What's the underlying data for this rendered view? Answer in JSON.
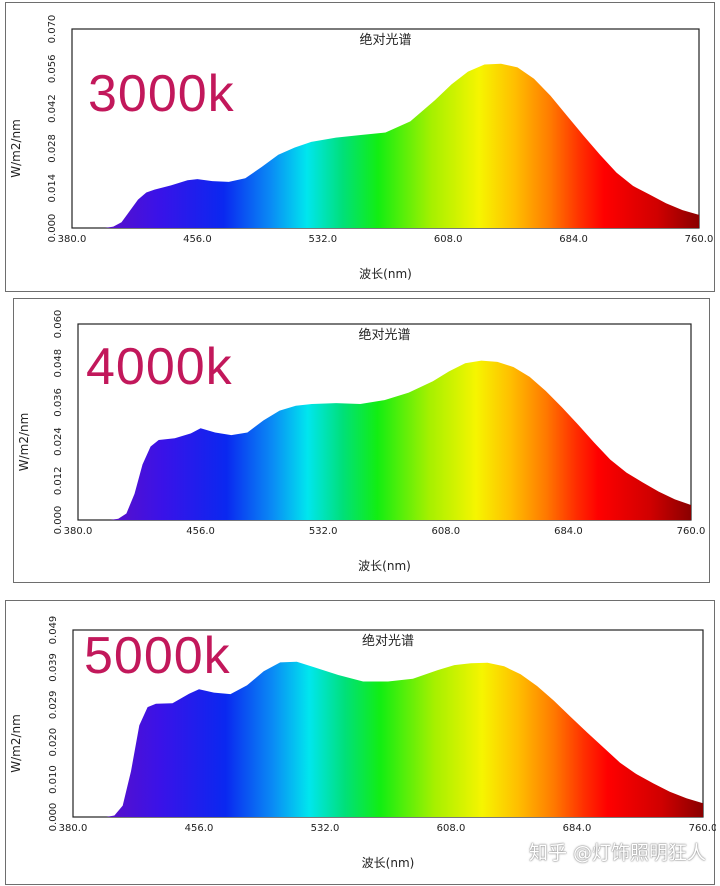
{
  "watermark": "知乎 @灯饰照明狂人",
  "chart_data": [
    {
      "type": "area",
      "label": "3000k",
      "title": "绝对光谱",
      "xlabel": "波长(nm)",
      "ylabel": "W/m2/nm",
      "xlim": [
        380,
        760
      ],
      "ylim": [
        0,
        0.07
      ],
      "xticks": [
        "380.0",
        "456.0",
        "532.0",
        "608.0",
        "684.0",
        "760.0"
      ],
      "yticks": [
        "0.000",
        "0.014",
        "0.028",
        "0.042",
        "0.056",
        "0.070"
      ],
      "x": [
        400,
        405,
        410,
        415,
        420,
        425,
        430,
        440,
        450,
        456,
        465,
        475,
        485,
        495,
        505,
        515,
        525,
        540,
        555,
        570,
        585,
        600,
        610,
        620,
        630,
        640,
        650,
        660,
        670,
        680,
        690,
        700,
        710,
        720,
        730,
        740,
        750,
        760
      ],
      "y": [
        0,
        0.0005,
        0.002,
        0.006,
        0.01,
        0.0125,
        0.0135,
        0.015,
        0.0168,
        0.0172,
        0.0165,
        0.0162,
        0.0175,
        0.0215,
        0.0258,
        0.0283,
        0.0303,
        0.0318,
        0.0327,
        0.0336,
        0.0375,
        0.045,
        0.0505,
        0.055,
        0.0575,
        0.0578,
        0.0565,
        0.0525,
        0.0465,
        0.0395,
        0.0325,
        0.0258,
        0.0195,
        0.0148,
        0.0118,
        0.0087,
        0.0063,
        0.0046
      ]
    },
    {
      "type": "area",
      "label": "4000k",
      "title": "绝对光谱",
      "xlabel": "波长(nm)",
      "ylabel": "W/m2/nm",
      "xlim": [
        380,
        760
      ],
      "ylim": [
        0,
        0.06
      ],
      "xticks": [
        "380.0",
        "456.0",
        "532.0",
        "608.0",
        "684.0",
        "760.0"
      ],
      "yticks": [
        "0.000",
        "0.012",
        "0.024",
        "0.036",
        "0.048",
        "0.060"
      ],
      "x": [
        400,
        405,
        410,
        415,
        420,
        425,
        430,
        440,
        450,
        456,
        465,
        475,
        485,
        495,
        505,
        515,
        525,
        540,
        555,
        570,
        585,
        600,
        610,
        620,
        630,
        640,
        650,
        660,
        670,
        680,
        690,
        700,
        710,
        720,
        730,
        740,
        750,
        760
      ],
      "y": [
        0,
        0.0004,
        0.002,
        0.008,
        0.017,
        0.0225,
        0.0245,
        0.025,
        0.0265,
        0.0281,
        0.0268,
        0.026,
        0.0268,
        0.0305,
        0.0335,
        0.035,
        0.0355,
        0.0358,
        0.0355,
        0.0367,
        0.039,
        0.0425,
        0.0455,
        0.048,
        0.0488,
        0.0484,
        0.0468,
        0.0438,
        0.0395,
        0.0345,
        0.0292,
        0.0237,
        0.0185,
        0.0145,
        0.0115,
        0.0087,
        0.0063,
        0.0046
      ]
    },
    {
      "type": "area",
      "label": "5000k",
      "title": "绝对光谱",
      "xlabel": "波长(nm)",
      "ylabel": "W/m2/nm",
      "xlim": [
        380,
        760
      ],
      "ylim": [
        0,
        0.049
      ],
      "xticks": [
        "380.0",
        "456.0",
        "532.0",
        "608.0",
        "684.0",
        "760.0"
      ],
      "yticks": [
        "0.000",
        "0.010",
        "0.020",
        "0.029",
        "0.039",
        "0.049"
      ],
      "x": [
        400,
        405,
        410,
        415,
        420,
        425,
        430,
        440,
        450,
        456,
        465,
        475,
        485,
        495,
        505,
        515,
        525,
        540,
        555,
        570,
        585,
        600,
        610,
        620,
        630,
        640,
        650,
        660,
        670,
        680,
        690,
        700,
        710,
        720,
        730,
        740,
        750,
        760
      ],
      "y": [
        0,
        0.0004,
        0.003,
        0.012,
        0.024,
        0.0288,
        0.0297,
        0.0298,
        0.0323,
        0.0335,
        0.0326,
        0.0322,
        0.0345,
        0.0382,
        0.0405,
        0.0407,
        0.0393,
        0.0372,
        0.0355,
        0.0355,
        0.0362,
        0.0385,
        0.0398,
        0.0403,
        0.0404,
        0.0395,
        0.0374,
        0.0343,
        0.0305,
        0.0263,
        0.0222,
        0.0182,
        0.0142,
        0.0112,
        0.0088,
        0.0066,
        0.0049,
        0.0036
      ]
    }
  ]
}
